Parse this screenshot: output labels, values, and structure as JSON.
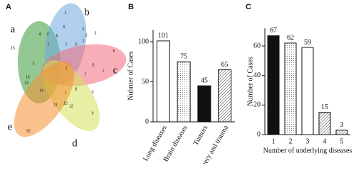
{
  "chart_data": [
    {
      "type": "venn",
      "panel": "A",
      "sets": [
        {
          "name": "a",
          "color": "#3a9a3a"
        },
        {
          "name": "b",
          "color": "#6fa8dc"
        },
        {
          "name": "c",
          "color": "#f06c7a"
        },
        {
          "name": "d",
          "color": "#d6e05a"
        },
        {
          "name": "e",
          "color": "#f5902f"
        }
      ],
      "values": [
        2,
        6,
        0,
        2,
        3,
        6,
        15,
        4,
        3,
        5,
        1,
        0,
        1,
        3,
        1,
        5,
        1,
        1,
        16,
        13,
        14,
        7,
        8,
        0,
        52,
        11,
        12,
        12,
        0,
        2
      ]
    },
    {
      "type": "bar",
      "panel": "B",
      "ylabel": "Nubmer of Cases",
      "categories": [
        "Lung diseases",
        "Brain diseases",
        "Tumors",
        "Surgery and trauma"
      ],
      "values": [
        101,
        75,
        45,
        65
      ],
      "fills": [
        "white",
        "dots",
        "black",
        "hatch"
      ],
      "ylim": [
        0,
        115
      ],
      "yticks": [
        0,
        50,
        100
      ]
    },
    {
      "type": "bar",
      "panel": "C",
      "ylabel": "Number of Cases",
      "xlabel": "Number of underlying diseases",
      "categories": [
        "1",
        "2",
        "3",
        "4",
        "5"
      ],
      "values": [
        67,
        62,
        59,
        15,
        3
      ],
      "fills": [
        "black",
        "dots",
        "white",
        "hatch",
        "hatch"
      ],
      "ylim": [
        0,
        72
      ],
      "yticks": [
        0,
        20,
        40,
        60
      ]
    }
  ]
}
